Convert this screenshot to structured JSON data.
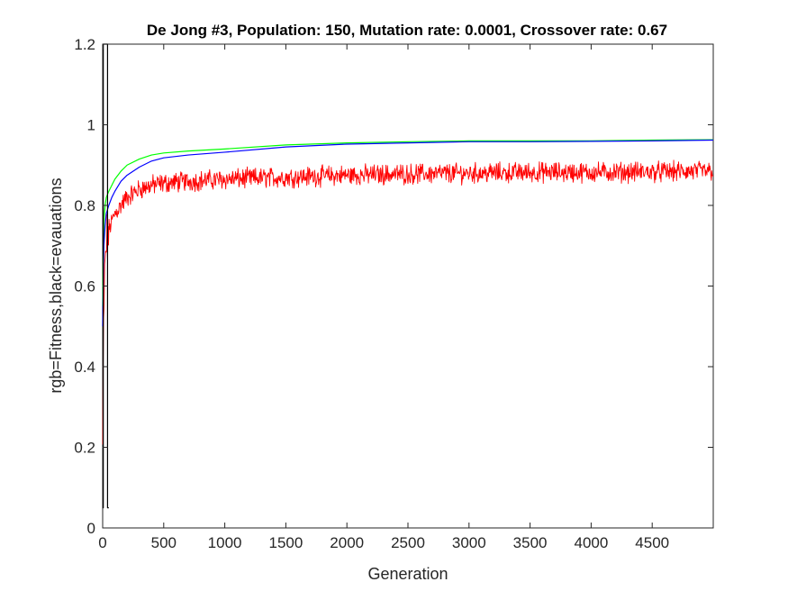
{
  "chart_data": {
    "type": "line",
    "title": "De Jong #3, Population: 150, Mutation rate: 0.0001, Crossover rate: 0.67",
    "xlabel": "Generation",
    "ylabel": "rgb=Fitness,black=evauations",
    "xlim": [
      0,
      5000
    ],
    "ylim": [
      0,
      1.2
    ],
    "x_ticks": [
      0,
      500,
      1000,
      1500,
      2000,
      2500,
      3000,
      3500,
      4000,
      4500
    ],
    "y_ticks": [
      0,
      0.2,
      0.4,
      0.6,
      0.8,
      1,
      1.2
    ],
    "grid": false,
    "series": [
      {
        "color": "#00ff00",
        "x": [
          0,
          5,
          10,
          20,
          30,
          50,
          75,
          100,
          150,
          200,
          300,
          400,
          500,
          700,
          1000,
          1500,
          2000,
          2500,
          3000,
          3500,
          4000,
          4500,
          5000
        ],
        "y": [
          0.55,
          0.7,
          0.76,
          0.8,
          0.82,
          0.835,
          0.85,
          0.865,
          0.885,
          0.9,
          0.915,
          0.925,
          0.93,
          0.935,
          0.94,
          0.95,
          0.955,
          0.958,
          0.96,
          0.96,
          0.96,
          0.962,
          0.963
        ]
      },
      {
        "color": "#0000ff",
        "x": [
          0,
          5,
          10,
          20,
          30,
          50,
          75,
          100,
          150,
          200,
          300,
          400,
          500,
          700,
          1000,
          1500,
          2000,
          2500,
          3000,
          3500,
          4000,
          4500,
          5000
        ],
        "y": [
          0.5,
          0.62,
          0.7,
          0.75,
          0.78,
          0.8,
          0.82,
          0.835,
          0.86,
          0.875,
          0.895,
          0.91,
          0.918,
          0.925,
          0.932,
          0.945,
          0.952,
          0.955,
          0.958,
          0.958,
          0.959,
          0.96,
          0.962
        ]
      },
      {
        "color": "#ff0000",
        "x": [
          0,
          5,
          10,
          20,
          30,
          50,
          75,
          100,
          150,
          200,
          300,
          400,
          500,
          700,
          1000,
          1500,
          2000,
          2500,
          3000,
          3500,
          4000,
          4500,
          5000
        ],
        "y": [
          0.2,
          0.4,
          0.55,
          0.65,
          0.7,
          0.74,
          0.76,
          0.78,
          0.8,
          0.82,
          0.84,
          0.85,
          0.855,
          0.86,
          0.865,
          0.87,
          0.875,
          0.878,
          0.88,
          0.882,
          0.882,
          0.883,
          0.885
        ],
        "noise": 0.02
      },
      {
        "color": "#000000",
        "x": [
          0,
          5,
          5,
          40,
          40,
          50
        ],
        "y": [
          0.05,
          0.05,
          1.2,
          1.2,
          0.05,
          0.05
        ]
      }
    ]
  }
}
